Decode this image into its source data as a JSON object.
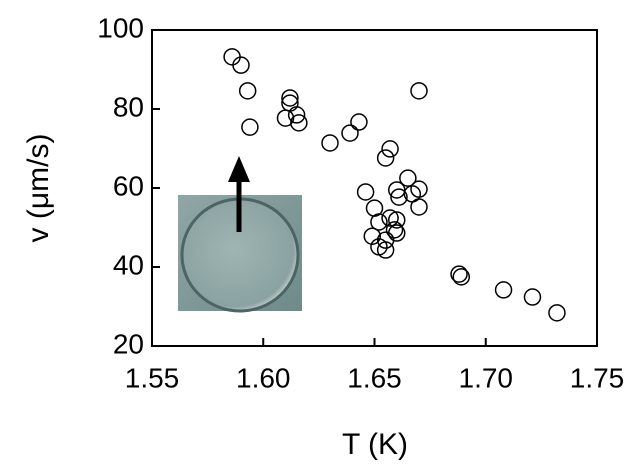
{
  "chart_data": {
    "type": "scatter",
    "x_label": "T (K)",
    "y_label": "v (μm/s)",
    "xlim": [
      1.55,
      1.75
    ],
    "xticks": [
      1.55,
      {
        "value": 1.6,
        "label": "1.60"
      },
      1.65,
      {
        "value": 1.7,
        "label": "1.70"
      },
      1.75
    ],
    "ylim": [
      20,
      100
    ],
    "yticks": [
      20,
      40,
      60,
      80,
      100
    ],
    "color": "#000000",
    "series": [
      {
        "x": [
          1.586,
          1.59,
          1.593,
          1.594,
          1.612,
          1.612,
          1.61,
          1.615,
          1.616,
          1.63,
          1.639,
          1.643,
          1.67,
          1.657,
          1.655,
          1.665,
          1.646,
          1.67,
          1.66,
          1.661,
          1.667,
          1.67,
          1.65,
          1.657,
          1.66,
          1.652,
          1.659,
          1.66,
          1.649,
          1.655,
          1.652,
          1.655,
          1.688,
          1.689,
          1.708,
          1.721,
          1.732
        ],
        "values": [
          93.2,
          91.1,
          84.6,
          75.4,
          82.8,
          81.5,
          77.7,
          78.5,
          76.5,
          71.4,
          73.9,
          76.7,
          84.6,
          69.9,
          67.6,
          62.5,
          59.0,
          59.7,
          59.5,
          57.7,
          58.5,
          55.2,
          54.9,
          52.4,
          51.9,
          51.4,
          49.4,
          48.6,
          47.8,
          46.8,
          45.1,
          44.3,
          38.2,
          37.5,
          34.2,
          32.4,
          28.4
        ]
      }
    ]
  }
}
